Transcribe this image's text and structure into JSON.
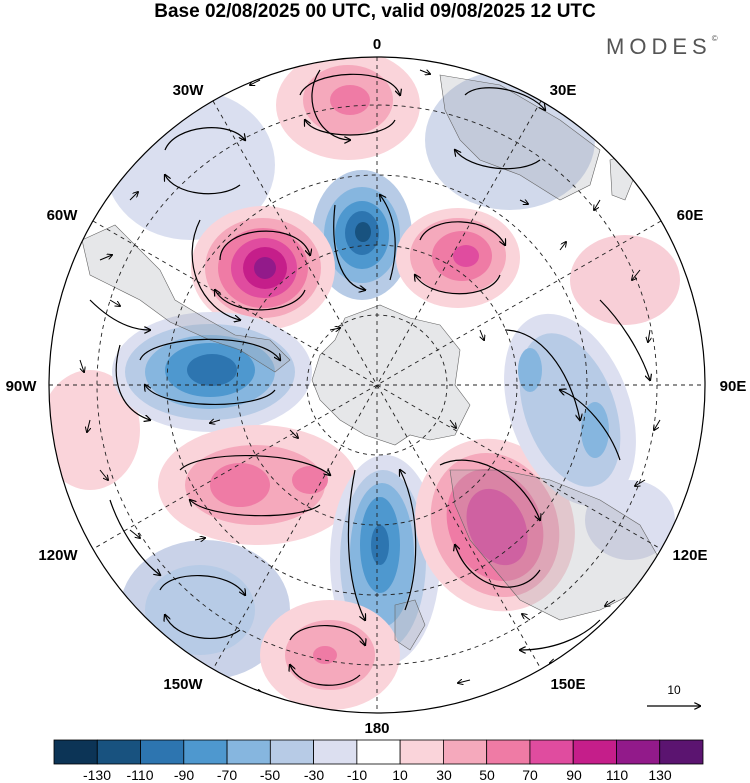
{
  "title": "Base 02/08/2025 00 UTC, valid 09/08/2025 12 UTC",
  "brand": "MODES",
  "brand_mark": "©",
  "projection": "south-polar-stereographic",
  "longitude_labels": {
    "lon_0": "0",
    "lon_30e": "30E",
    "lon_60e": "60E",
    "lon_90e": "90E",
    "lon_120e": "120E",
    "lon_150e": "150E",
    "lon_180": "180",
    "lon_150w": "150W",
    "lon_120w": "120W",
    "lon_90w": "90W",
    "lon_60w": "60W",
    "lon_30w": "30W"
  },
  "reference_vector": {
    "label": "10"
  },
  "colorbar": {
    "colors": [
      "#0c3456",
      "#18527f",
      "#2d75b0",
      "#4e98cf",
      "#86b6df",
      "#b7cbe6",
      "#dcdff0",
      "#ffffff",
      "#fad4da",
      "#f5a9bc",
      "#ef7ba5",
      "#e04c9f",
      "#c51e8a",
      "#921a8a",
      "#5b1470"
    ],
    "labels": {
      "l1": "-130",
      "l2": "-110",
      "l3": "-90",
      "l4": "-70",
      "l5": "-50",
      "l6": "-30",
      "l7": "-10",
      "l8": "10",
      "l9": "30",
      "l10": "50",
      "l11": "70",
      "l12": "90",
      "l13": "110",
      "l14": "130"
    }
  },
  "anomaly_centers": [
    {
      "name": "neg-center-0",
      "lon": 0,
      "sign": "negative",
      "value": -110
    },
    {
      "name": "pos-center-30e",
      "lon": 45,
      "sign": "positive",
      "value": 70
    },
    {
      "name": "pos-center-60w",
      "lon": -45,
      "sign": "positive",
      "value": 120
    },
    {
      "name": "neg-center-90w",
      "lon": -90,
      "sign": "negative",
      "value": -90
    },
    {
      "name": "pos-center-135w",
      "lon": -135,
      "sign": "positive",
      "value": 60
    },
    {
      "name": "neg-center-180",
      "lon": 180,
      "sign": "negative",
      "value": -90
    },
    {
      "name": "pos-center-135e",
      "lon": 135,
      "sign": "positive",
      "value": 90
    },
    {
      "name": "neg-center-90e",
      "lon": 90,
      "sign": "negative",
      "value": -50
    },
    {
      "name": "pos-center-0-outer",
      "lon": 0,
      "sign": "positive",
      "value": 70
    },
    {
      "name": "neg-center-150w",
      "lon": -150,
      "sign": "negative",
      "value": -50
    }
  ]
}
